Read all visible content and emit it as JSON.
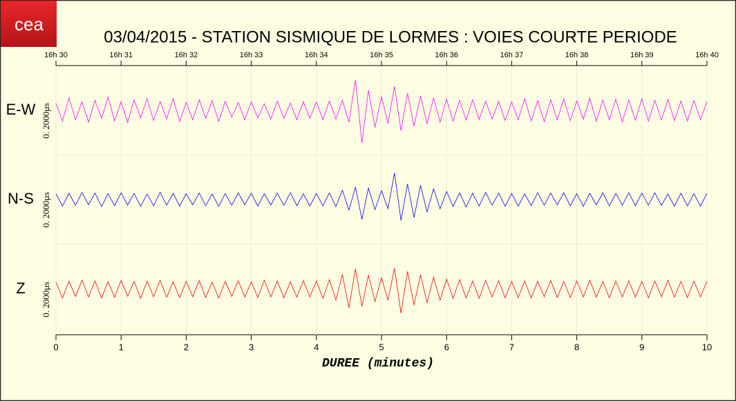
{
  "logo": "cea",
  "chart_data": {
    "type": "line",
    "title": "03/04/2015  -  STATION SISMIQUE DE LORMES : VOIES COURTE PERIODE",
    "xlabel": "DUREE (minutes)",
    "xlim": [
      0,
      10
    ],
    "xticks": [
      0,
      1,
      2,
      3,
      4,
      5,
      6,
      7,
      8,
      9,
      10
    ],
    "top_xticks": [
      {
        "value": 0,
        "label": "16h 30"
      },
      {
        "value": 1,
        "label": "16h 31"
      },
      {
        "value": 2,
        "label": "16h 32"
      },
      {
        "value": 3,
        "label": "16h 33"
      },
      {
        "value": 4,
        "label": "16h 34"
      },
      {
        "value": 5,
        "label": "16h 35"
      },
      {
        "value": 6,
        "label": "16h 36"
      },
      {
        "value": 7,
        "label": "16h 37"
      },
      {
        "value": 8,
        "label": "16h 38"
      },
      {
        "value": 9,
        "label": "16h 39"
      },
      {
        "value": 10,
        "label": "16h 40"
      }
    ],
    "ylim": [
      -2000,
      2000
    ],
    "grid": true,
    "x": [
      0,
      0.1,
      0.2,
      0.3,
      0.4,
      0.5,
      0.6,
      0.7,
      0.8,
      0.9,
      1,
      1.1,
      1.2,
      1.3,
      1.4,
      1.5,
      1.6,
      1.7,
      1.8,
      1.9,
      2,
      2.1,
      2.2,
      2.3,
      2.4,
      2.5,
      2.6,
      2.7,
      2.8,
      2.9,
      3,
      3.1,
      3.2,
      3.3,
      3.4,
      3.5,
      3.6,
      3.7,
      3.8,
      3.9,
      4,
      4.1,
      4.2,
      4.3,
      4.4,
      4.5,
      4.6,
      4.7,
      4.8,
      4.9,
      5,
      5.1,
      5.2,
      5.3,
      5.4,
      5.5,
      5.6,
      5.7,
      5.8,
      5.9,
      6,
      6.1,
      6.2,
      6.3,
      6.4,
      6.5,
      6.6,
      6.7,
      6.8,
      6.9,
      7,
      7.1,
      7.2,
      7.3,
      7.4,
      7.5,
      7.6,
      7.7,
      7.8,
      7.9,
      8,
      8.1,
      8.2,
      8.3,
      8.4,
      8.5,
      8.6,
      8.7,
      8.8,
      8.9,
      9,
      9.1,
      9.2,
      9.3,
      9.4,
      9.5,
      9.6,
      9.7,
      9.8,
      9.9,
      10
    ],
    "series": [
      {
        "name": "E-W",
        "color": "#ff00ff",
        "scale_label": "0. 2000µs",
        "values": [
          320,
          -480,
          560,
          -410,
          380,
          -520,
          450,
          -360,
          600,
          -470,
          390,
          -540,
          470,
          -330,
          510,
          -450,
          400,
          -380,
          530,
          -490,
          360,
          -420,
          480,
          -350,
          440,
          -500,
          410,
          -300,
          350,
          -420,
          380,
          -330,
          300,
          -390,
          420,
          -360,
          330,
          -410,
          390,
          -350,
          370,
          -400,
          420,
          -380,
          450,
          -520,
          1350,
          -1450,
          900,
          -760,
          620,
          -580,
          1080,
          -900,
          760,
          -700,
          650,
          -600,
          560,
          -520,
          500,
          -480,
          460,
          -430,
          480,
          -400,
          420,
          -380,
          400,
          -450,
          380,
          -410,
          520,
          -470,
          440,
          -500,
          480,
          -420,
          510,
          -460,
          430,
          -390,
          540,
          -480,
          460,
          -420,
          500,
          -510,
          470,
          -440,
          520,
          -480,
          450,
          -430,
          490,
          -460,
          420,
          -470,
          440,
          -400,
          380
        ]
      },
      {
        "name": "N-S",
        "color": "#0000ff",
        "scale_label": "0. 2000µs",
        "values": [
          250,
          -300,
          280,
          -260,
          310,
          -240,
          290,
          -320,
          260,
          -280,
          300,
          -250,
          270,
          -310,
          240,
          -290,
          320,
          -260,
          280,
          -300,
          260,
          -240,
          290,
          -280,
          250,
          -310,
          270,
          -260,
          300,
          -240,
          280,
          -300,
          260,
          -250,
          290,
          -270,
          310,
          -280,
          260,
          -300,
          270,
          -290,
          300,
          -320,
          420,
          -480,
          560,
          -900,
          520,
          -460,
          400,
          -420,
          1200,
          -950,
          700,
          -820,
          640,
          -560,
          480,
          -420,
          360,
          -320,
          300,
          -340,
          280,
          -300,
          320,
          -260,
          290,
          -310,
          270,
          -300,
          250,
          -280,
          310,
          -260,
          290,
          -240,
          300,
          -280,
          260,
          -310,
          280,
          -250,
          300,
          -290,
          270,
          -260,
          310,
          -280,
          290,
          -260,
          300,
          -270,
          250,
          -300,
          280,
          -290,
          260,
          -300,
          270
        ]
      },
      {
        "name": "Z",
        "color": "#ff0000",
        "scale_label": "0. 2000µs",
        "values": [
          300,
          -380,
          350,
          -320,
          400,
          -340,
          360,
          -390,
          330,
          -350,
          380,
          -310,
          340,
          -400,
          360,
          -330,
          390,
          -350,
          320,
          -370,
          350,
          -330,
          380,
          -360,
          310,
          -390,
          340,
          -320,
          370,
          -350,
          330,
          -360,
          390,
          -340,
          360,
          -380,
          320,
          -350,
          380,
          -340,
          360,
          -400,
          420,
          -480,
          650,
          -820,
          900,
          -760,
          620,
          -540,
          500,
          -480,
          920,
          -1050,
          780,
          -700,
          640,
          -600,
          520,
          -480,
          440,
          -400,
          420,
          -380,
          360,
          -400,
          390,
          -350,
          370,
          -380,
          340,
          -370,
          360,
          -390,
          350,
          -330,
          380,
          -360,
          340,
          -370,
          360,
          -340,
          390,
          -350,
          330,
          -380,
          360,
          -340,
          370,
          -350,
          340,
          -380,
          360,
          -330,
          390,
          -350,
          340,
          -370,
          360,
          -340,
          350
        ]
      }
    ]
  }
}
